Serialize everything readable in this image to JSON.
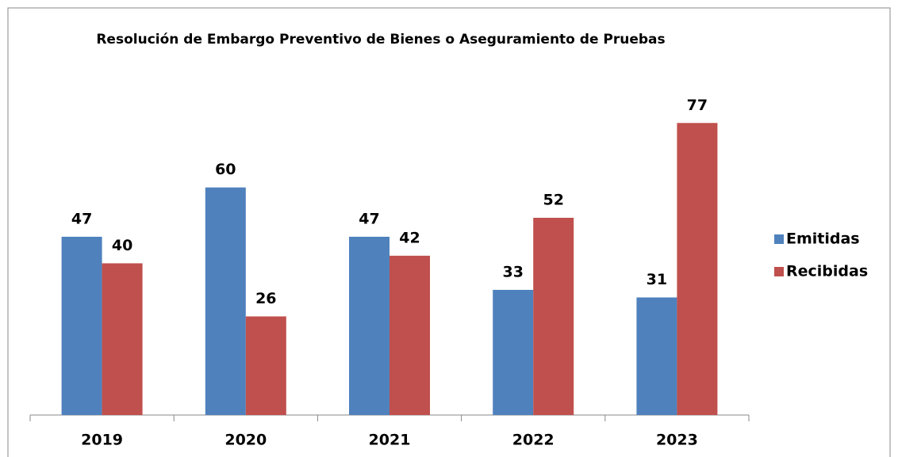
{
  "chart_data": {
    "type": "bar",
    "title": "Resolución de Embargo Preventivo de Bienes o Aseguramiento de Pruebas",
    "categories": [
      "2019",
      "2020",
      "2021",
      "2022",
      "2023"
    ],
    "series": [
      {
        "name": "Emitidas",
        "color": "#4f81bd",
        "values": [
          47,
          60,
          47,
          33,
          31
        ]
      },
      {
        "name": "Recibidas",
        "color": "#c0504d",
        "values": [
          40,
          26,
          42,
          52,
          77
        ]
      }
    ],
    "ylim": [
      0,
      90
    ],
    "legend": "right"
  }
}
